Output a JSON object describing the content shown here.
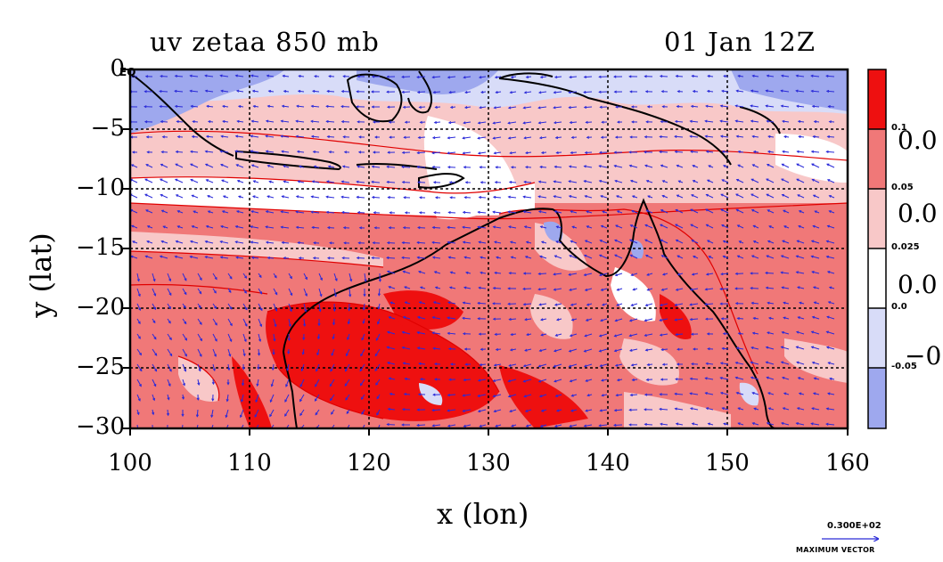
{
  "header": {
    "title_left": "uv zetaa 850 mb",
    "title_right": "01 Jan 12Z"
  },
  "axes": {
    "xlabel": "x (lon)",
    "ylabel": "y (lat)",
    "x_ticks": [
      "100",
      "110",
      "120",
      "130",
      "140",
      "150",
      "160"
    ],
    "y_ticks": [
      "0",
      "−5",
      "−10",
      "−15",
      "−20",
      "−25",
      "−30"
    ],
    "x_range": [
      100,
      160
    ],
    "y_range": [
      -30,
      0
    ],
    "equator_label": "EQ"
  },
  "colorbar": {
    "levels_small": [
      "0.1",
      "0.05",
      "0.025",
      "0.0",
      "-0.05"
    ],
    "levels_big": [
      "0.0",
      "0.0",
      "0.0",
      "−0."
    ],
    "colors": [
      "#ee1010",
      "#f07878",
      "#f8c8c8",
      "#ffffff",
      "#d8dcf8",
      "#9ea8ee"
    ]
  },
  "vector_key": {
    "value": "0.300E+02",
    "caption": "MAXIMUM VECTOR"
  },
  "colors": {
    "strong_pos": "#ee1010",
    "mid_pos": "#f07878",
    "light_pos": "#f8c8c8",
    "light_neg": "#d8dcf8",
    "mid_neg": "#9ea8ee",
    "coast": "#000000",
    "vectors": "#2a2ad8",
    "contours": "#e00000"
  }
}
